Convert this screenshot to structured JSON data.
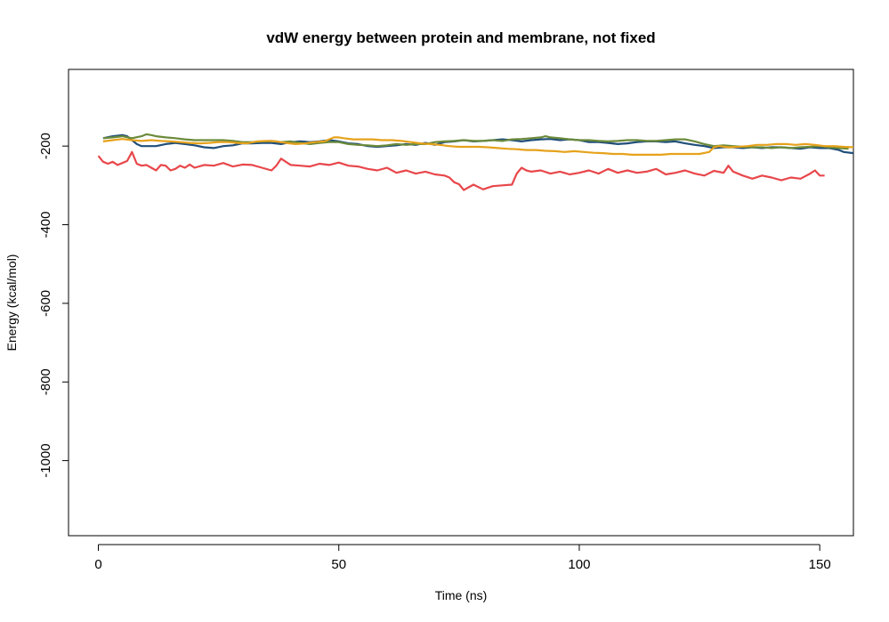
{
  "chart_data": {
    "type": "line",
    "title": "vdW energy between protein and membrane, not fixed",
    "xlabel": "Time (ns)",
    "ylabel": "Energy (kcal/mol)",
    "xlim": [
      -6.2,
      157
    ],
    "ylim": [
      -1191,
      -5
    ],
    "x_ticks": [
      0,
      50,
      100,
      150
    ],
    "y_ticks": [
      -200,
      -400,
      -600,
      -800,
      -1000
    ],
    "x_tick_labels": [
      "0",
      "50",
      "100",
      "150"
    ],
    "y_tick_labels": [
      "-200",
      "-400",
      "-600",
      "-800",
      "-1000"
    ],
    "grid": false,
    "series": [
      {
        "color": "#e8474b",
        "x": [
          0,
          1,
          2,
          3,
          4,
          5,
          6,
          7,
          8,
          9,
          10,
          11,
          12,
          13,
          14,
          15,
          16,
          17,
          18,
          19,
          20,
          22,
          24,
          26,
          28,
          30,
          32,
          34,
          36,
          37,
          38,
          40,
          42,
          44,
          46,
          48,
          50,
          52,
          54,
          56,
          58,
          60,
          62,
          64,
          66,
          68,
          70,
          72,
          73,
          74,
          75,
          76,
          77,
          78,
          80,
          82,
          84,
          86,
          87,
          88,
          89,
          90,
          92,
          94,
          96,
          98,
          100,
          102,
          104,
          106,
          108,
          110,
          112,
          114,
          116,
          118,
          120,
          122,
          124,
          126,
          128,
          130,
          131,
          132,
          134,
          136,
          138,
          140,
          142,
          144,
          146,
          148,
          149,
          150,
          151
        ],
        "y": [
          -225,
          -240,
          -245,
          -240,
          -248,
          -243,
          -238,
          -215,
          -245,
          -250,
          -248,
          -255,
          -262,
          -248,
          -250,
          -262,
          -258,
          -250,
          -255,
          -247,
          -255,
          -248,
          -250,
          -243,
          -252,
          -247,
          -248,
          -255,
          -262,
          -250,
          -232,
          -248,
          -250,
          -252,
          -245,
          -248,
          -242,
          -250,
          -252,
          -258,
          -262,
          -255,
          -268,
          -262,
          -270,
          -265,
          -272,
          -275,
          -280,
          -292,
          -297,
          -312,
          -305,
          -298,
          -310,
          -302,
          -300,
          -298,
          -270,
          -255,
          -262,
          -265,
          -262,
          -270,
          -265,
          -272,
          -268,
          -262,
          -270,
          -258,
          -268,
          -262,
          -268,
          -265,
          -258,
          -272,
          -268,
          -262,
          -270,
          -275,
          -263,
          -268,
          -250,
          -265,
          -275,
          -283,
          -275,
          -280,
          -287,
          -280,
          -283,
          -270,
          -262,
          -275,
          -275
        ]
      },
      {
        "color": "#1f4e79",
        "x": [
          1,
          3,
          5,
          6,
          7,
          8,
          9,
          10,
          12,
          14,
          16,
          18,
          20,
          22,
          24,
          26,
          28,
          30,
          32,
          34,
          36,
          38,
          40,
          42,
          44,
          46,
          48,
          50,
          52,
          54,
          56,
          58,
          60,
          62,
          64,
          66,
          68,
          70,
          72,
          74,
          76,
          78,
          80,
          82,
          84,
          86,
          88,
          90,
          92,
          94,
          96,
          98,
          100,
          102,
          104,
          106,
          108,
          110,
          112,
          114,
          116,
          118,
          120,
          122,
          124,
          126,
          128,
          130,
          132,
          134,
          136,
          138,
          140,
          142,
          144,
          146,
          148,
          150,
          152,
          154,
          155,
          157
        ],
        "y": [
          -180,
          -175,
          -172,
          -175,
          -185,
          -195,
          -200,
          -200,
          -200,
          -195,
          -192,
          -195,
          -198,
          -203,
          -205,
          -200,
          -198,
          -193,
          -193,
          -192,
          -192,
          -195,
          -190,
          -188,
          -190,
          -188,
          -185,
          -188,
          -193,
          -195,
          -200,
          -202,
          -200,
          -198,
          -195,
          -197,
          -192,
          -197,
          -190,
          -188,
          -185,
          -188,
          -187,
          -185,
          -183,
          -185,
          -188,
          -185,
          -183,
          -182,
          -185,
          -183,
          -185,
          -190,
          -190,
          -192,
          -195,
          -193,
          -190,
          -188,
          -188,
          -190,
          -188,
          -193,
          -197,
          -200,
          -205,
          -203,
          -203,
          -205,
          -203,
          -205,
          -203,
          -203,
          -205,
          -207,
          -203,
          -205,
          -205,
          -210,
          -215,
          -218
        ]
      },
      {
        "color": "#6b8a3a",
        "x": [
          1,
          3,
          5,
          7,
          9,
          10,
          11,
          12,
          14,
          16,
          18,
          20,
          22,
          24,
          26,
          28,
          30,
          32,
          34,
          36,
          38,
          40,
          42,
          44,
          46,
          48,
          50,
          52,
          54,
          56,
          58,
          60,
          62,
          64,
          66,
          68,
          70,
          72,
          74,
          76,
          78,
          80,
          82,
          84,
          86,
          88,
          90,
          92,
          93,
          94,
          96,
          98,
          100,
          102,
          104,
          106,
          108,
          110,
          112,
          114,
          116,
          118,
          120,
          122,
          124,
          126,
          128,
          130,
          132,
          134,
          136,
          138,
          140,
          142,
          144,
          146,
          148,
          150,
          152,
          154,
          156
        ],
        "y": [
          -180,
          -178,
          -175,
          -180,
          -175,
          -170,
          -172,
          -175,
          -178,
          -180,
          -183,
          -185,
          -185,
          -185,
          -185,
          -187,
          -190,
          -190,
          -188,
          -187,
          -190,
          -188,
          -192,
          -195,
          -192,
          -190,
          -190,
          -195,
          -197,
          -198,
          -200,
          -198,
          -195,
          -197,
          -195,
          -195,
          -190,
          -188,
          -187,
          -185,
          -187,
          -187,
          -185,
          -187,
          -183,
          -182,
          -180,
          -178,
          -175,
          -178,
          -180,
          -183,
          -185,
          -185,
          -187,
          -188,
          -187,
          -185,
          -185,
          -187,
          -187,
          -185,
          -183,
          -183,
          -188,
          -195,
          -200,
          -198,
          -200,
          -202,
          -203,
          -203,
          -205,
          -203,
          -205,
          -203,
          -202,
          -200,
          -203,
          -205,
          -207
        ]
      },
      {
        "color": "#e6a21b",
        "x": [
          1,
          3,
          5,
          7,
          9,
          11,
          13,
          15,
          17,
          19,
          21,
          23,
          25,
          27,
          29,
          31,
          33,
          35,
          37,
          39,
          41,
          43,
          45,
          47,
          48,
          49,
          50,
          51,
          53,
          55,
          57,
          59,
          61,
          63,
          65,
          67,
          69,
          71,
          73,
          75,
          77,
          79,
          81,
          83,
          85,
          87,
          89,
          91,
          93,
          95,
          97,
          99,
          101,
          103,
          105,
          107,
          109,
          111,
          113,
          115,
          117,
          119,
          121,
          123,
          125,
          127,
          128,
          129,
          131,
          133,
          135,
          137,
          139,
          141,
          143,
          145,
          147,
          149,
          151,
          153,
          155,
          157
        ],
        "y": [
          -188,
          -185,
          -182,
          -185,
          -187,
          -185,
          -187,
          -188,
          -190,
          -192,
          -193,
          -192,
          -190,
          -190,
          -192,
          -193,
          -188,
          -187,
          -188,
          -192,
          -195,
          -193,
          -190,
          -188,
          -183,
          -178,
          -178,
          -180,
          -183,
          -183,
          -183,
          -185,
          -185,
          -187,
          -190,
          -193,
          -195,
          -197,
          -200,
          -202,
          -202,
          -202,
          -203,
          -205,
          -207,
          -208,
          -210,
          -210,
          -212,
          -213,
          -215,
          -213,
          -215,
          -217,
          -218,
          -220,
          -220,
          -222,
          -222,
          -222,
          -222,
          -220,
          -220,
          -220,
          -220,
          -215,
          -203,
          -200,
          -203,
          -202,
          -200,
          -197,
          -197,
          -195,
          -195,
          -197,
          -195,
          -197,
          -200,
          -200,
          -202,
          -203
        ]
      }
    ]
  }
}
